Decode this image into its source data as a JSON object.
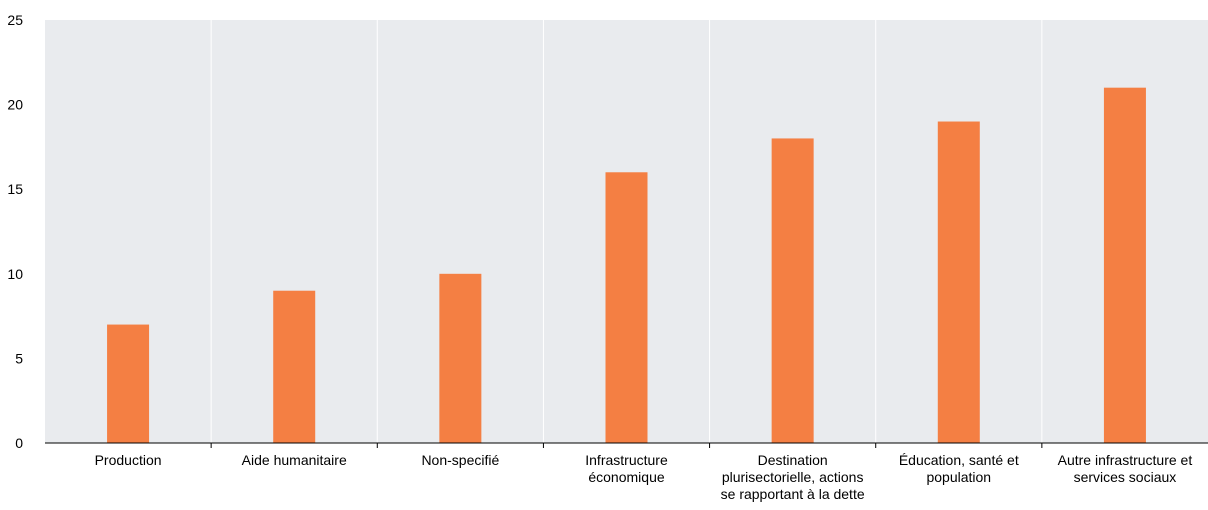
{
  "chart_data": {
    "type": "bar",
    "categories": [
      [
        "Production"
      ],
      [
        "Aide humanitaire"
      ],
      [
        "Non-specifié"
      ],
      [
        "Infrastructure",
        "économique"
      ],
      [
        "Destination",
        "plurisectorielle, actions",
        "se rapportant à la dette"
      ],
      [
        "Éducation, santé et",
        "population"
      ],
      [
        "Autre infrastructure et",
        "services sociaux"
      ]
    ],
    "values": [
      7,
      9,
      10,
      16,
      18,
      19,
      21
    ],
    "yticks": [
      "0",
      "5",
      "10",
      "15",
      "20",
      "25"
    ],
    "ylim": [
      0,
      25
    ],
    "title": "",
    "xlabel": "",
    "ylabel": "",
    "grid": "vertical separators",
    "colors": {
      "bar": "#f47f43",
      "plot_background": "#e9ebee",
      "separator": "#ffffff",
      "axis": "#000000"
    }
  }
}
